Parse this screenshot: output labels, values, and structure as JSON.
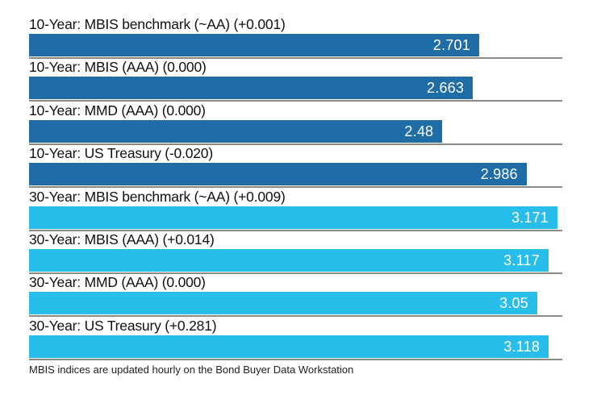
{
  "chart_data": {
    "type": "bar",
    "orientation": "horizontal",
    "title": "",
    "xlabel": "",
    "ylabel": "",
    "xlim": [
      0,
      3.2
    ],
    "grid": false,
    "legend": "none",
    "categories": [
      "10-Year: MBIS benchmark (~AA) (+0.001)",
      "10-Year: MBIS (AAA) (0.000)",
      "10-Year: MMD (AAA) (0.000)",
      "10-Year: US Treasury (-0.020)",
      "30-Year: MBIS benchmark (~AA) (+0.009)",
      "30-Year: MBIS (AAA) (+0.014)",
      "30-Year: MMD (AAA) (0.000)",
      "30-Year: US Treasury (+0.281)"
    ],
    "values": [
      2.701,
      2.663,
      2.48,
      2.986,
      3.171,
      3.117,
      3.05,
      3.118
    ],
    "value_labels": [
      "2.701",
      "2.663",
      "2.48",
      "2.986",
      "3.171",
      "3.117",
      "3.05",
      "3.118"
    ],
    "groups": [
      "10-year",
      "10-year",
      "10-year",
      "10-year",
      "30-year",
      "30-year",
      "30-year",
      "30-year"
    ],
    "group_colors": {
      "10-year": "#1F6CA6",
      "30-year": "#29BDEB"
    },
    "value_label_color": "#FFFFFF",
    "divider_color": "#8A8A8A"
  },
  "footer": {
    "note": "MBIS indices are updated hourly on the Bond Buyer Data Workstation"
  }
}
